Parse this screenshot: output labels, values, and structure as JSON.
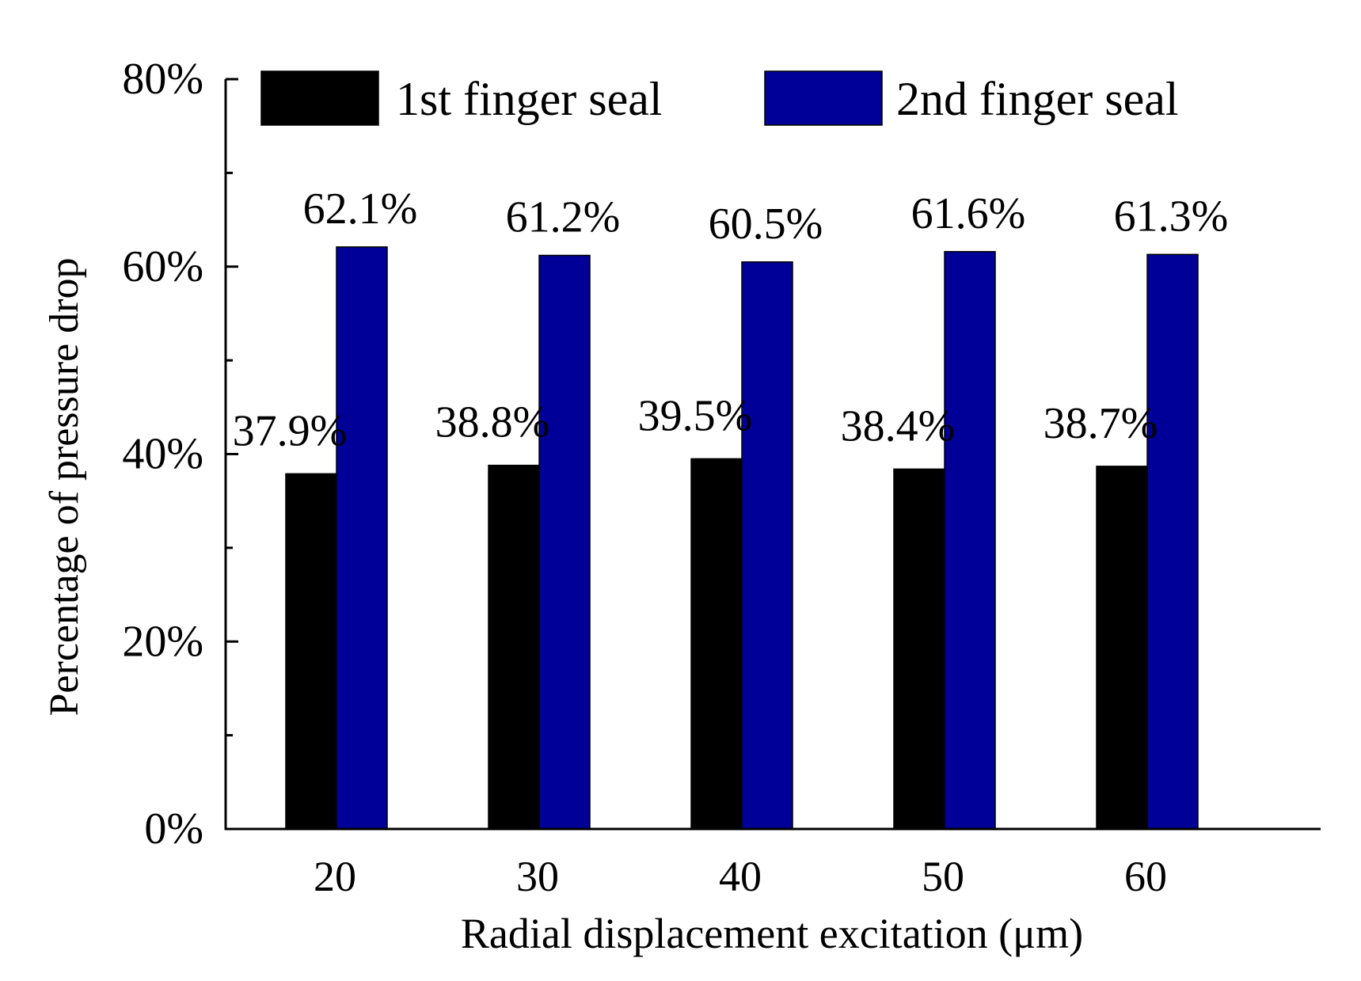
{
  "chart_data": {
    "type": "bar",
    "title": "",
    "xlabel": "Radial displacement excitation (μm)",
    "ylabel": "Percentage of pressure drop",
    "categories": [
      "20",
      "30",
      "40",
      "50",
      "60"
    ],
    "series": [
      {
        "name": "1st finger seal",
        "color": "#000000",
        "values": [
          37.9,
          38.8,
          39.5,
          38.4,
          38.7
        ],
        "labels": [
          "37.9%",
          "38.8%",
          "39.5%",
          "38.4%",
          "38.7%"
        ]
      },
      {
        "name": "2nd finger seal",
        "color": "#000099",
        "values": [
          62.1,
          61.2,
          60.5,
          61.6,
          61.3
        ],
        "labels": [
          "62.1%",
          "61.2%",
          "60.5%",
          "61.6%",
          "61.3%"
        ]
      }
    ],
    "ylim": [
      0,
      80
    ],
    "yticks": [
      0,
      20,
      40,
      60,
      80
    ],
    "ytick_labels": [
      "0%",
      "20%",
      "40%",
      "60%",
      "80%"
    ],
    "minor_yticks": [
      10,
      30,
      50,
      70
    ],
    "grid": false,
    "legend_position": "top"
  }
}
